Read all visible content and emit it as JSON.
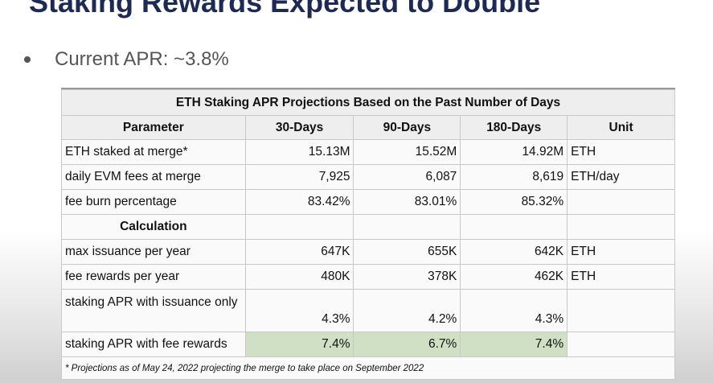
{
  "slide_title": "Staking Rewards Expected to Double",
  "bullet": "Current APR: ~3.8%",
  "table": {
    "title": "ETH Staking APR Projections Based on the Past Number of Days",
    "headers": [
      "Parameter",
      "30-Days",
      "90-Days",
      "180-Days",
      "Unit"
    ],
    "rows": [
      [
        "ETH staked at merge*",
        "15.13M",
        "15.52M",
        "14.92M",
        "ETH"
      ],
      [
        "daily EVM fees at merge",
        "7,925",
        "6,087",
        "8,619",
        "ETH/day"
      ],
      [
        "fee burn percentage",
        "83.42%",
        "83.01%",
        "85.32%",
        ""
      ],
      [
        "Calculation",
        "",
        "",
        "",
        ""
      ],
      [
        "max issuance per year",
        "647K",
        "655K",
        "642K",
        "ETH"
      ],
      [
        "fee rewards per year",
        "480K",
        "378K",
        "462K",
        "ETH"
      ],
      [
        "staking APR with issuance only",
        "4.3%",
        "4.2%",
        "4.3%",
        ""
      ],
      [
        "staking APR with fee rewards",
        "7.4%",
        "6.7%",
        "7.4%",
        ""
      ]
    ],
    "footnote": "* Projections as of May 24, 2022 projecting the merge to take place on September 2022",
    "highlight_color": "#cfe0c4"
  }
}
